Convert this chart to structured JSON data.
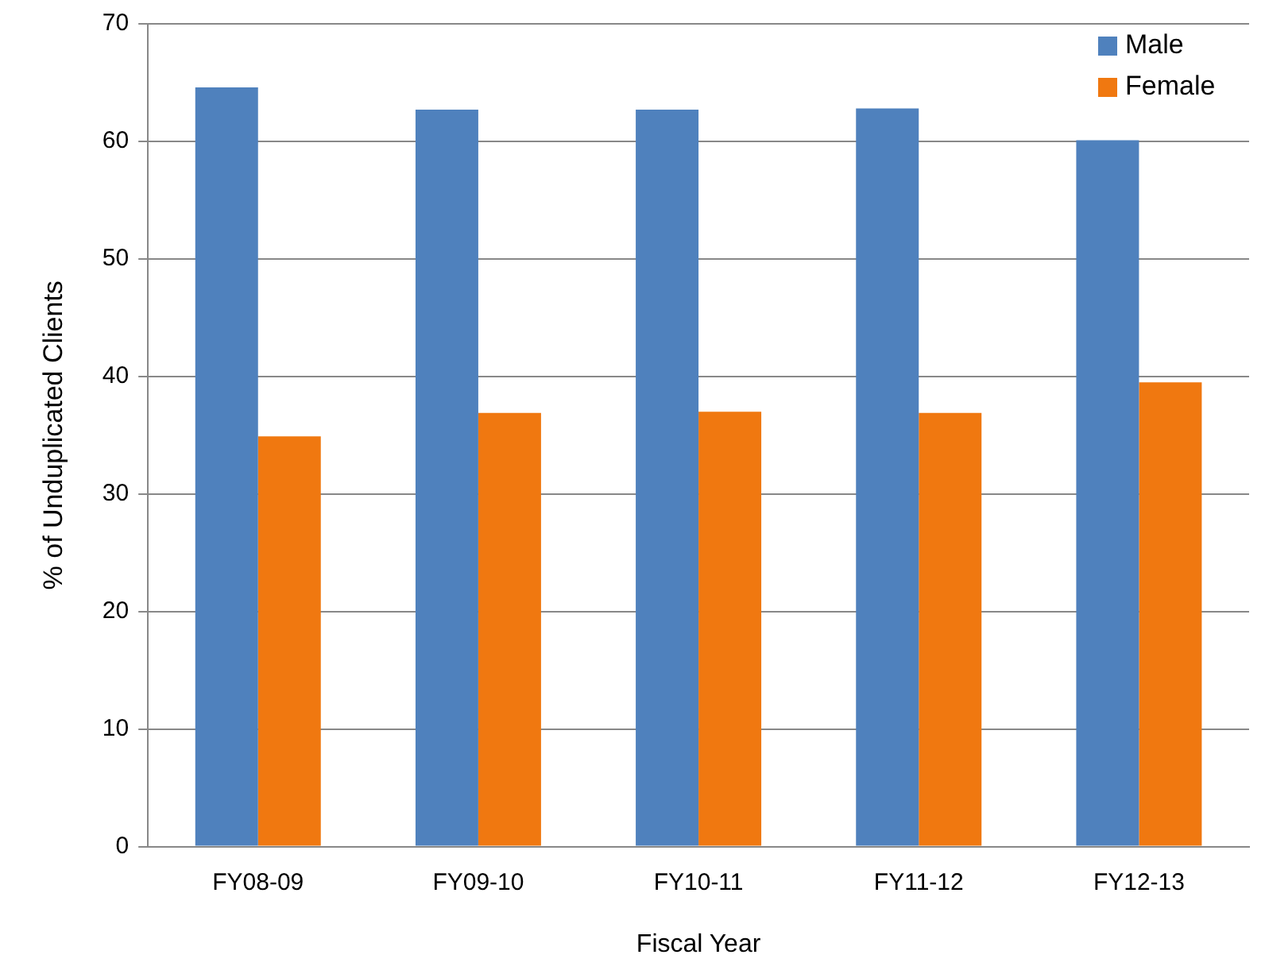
{
  "chart_data": {
    "type": "bar",
    "xlabel": "Fiscal Year",
    "ylabel": "% of Unduplicated Clients",
    "categories": [
      "FY08-09",
      "FY09-10",
      "FY10-11",
      "FY11-12",
      "FY12-13"
    ],
    "series": [
      {
        "name": "Male",
        "color": "#4f81bd",
        "values": [
          64.6,
          62.7,
          62.7,
          62.8,
          60.1
        ]
      },
      {
        "name": "Female",
        "color": "#f07810",
        "values": [
          34.9,
          36.9,
          37.0,
          36.9,
          39.5
        ]
      }
    ],
    "ylim": [
      0,
      70
    ],
    "yticks": [
      0,
      10,
      20,
      30,
      40,
      50,
      60,
      70
    ],
    "grid": "y",
    "legend": "top right"
  }
}
